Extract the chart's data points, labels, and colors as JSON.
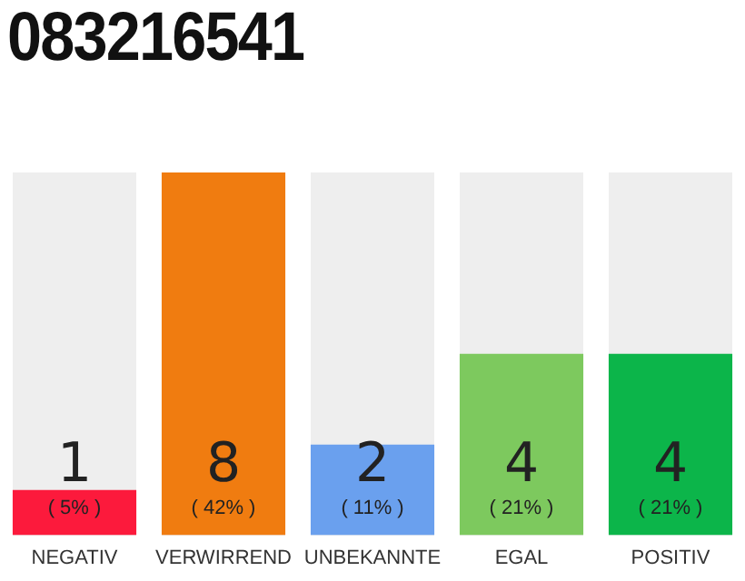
{
  "chart_data": {
    "type": "bar",
    "title": "083216541",
    "categories": [
      "NEGATIV",
      "VERWIRREND",
      "UNBEKANNTE",
      "EGAL",
      "POSITIV"
    ],
    "values": [
      1,
      8,
      2,
      4,
      4
    ],
    "colors": [
      "#fc1a3c",
      "#f07c10",
      "#6aa0ee",
      "#7dc95e",
      "#0cb54a"
    ],
    "data_labels": true,
    "annotations": [
      "( 5% )",
      "( 42% )",
      "( 11% )",
      "( 21% )",
      "( 21% )"
    ],
    "tick_labels": "x",
    "grid": false,
    "legend": false
  }
}
